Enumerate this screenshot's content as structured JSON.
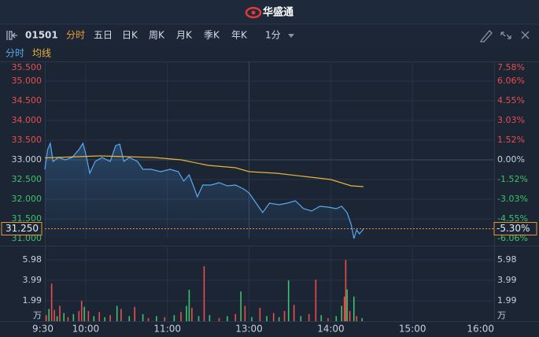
{
  "header": {
    "title": "华盛通"
  },
  "toolbar": {
    "code": "01501",
    "tabs": [
      "分时",
      "五日",
      "日K",
      "周K",
      "月K",
      "季K",
      "年K"
    ],
    "active_tab": 0,
    "interval": "1分"
  },
  "chart_data": [
    {
      "type": "line",
      "base": 33.0,
      "series": [
        {
          "name": "分时",
          "color": "#5aa9f0",
          "x": [
            0,
            2,
            4,
            6,
            10,
            15,
            20,
            25,
            28,
            30,
            33,
            37,
            42,
            48,
            52,
            55,
            58,
            62,
            68,
            72,
            78,
            85,
            92,
            98,
            102,
            106,
            110,
            112,
            116,
            122,
            128,
            134,
            140,
            146,
            150,
            156,
            160,
            165,
            172,
            178,
            184,
            190,
            196,
            202,
            208,
            214,
            218,
            222,
            225,
            227,
            229,
            231,
            234
          ],
          "values": [
            32.76,
            33.26,
            33.42,
            32.96,
            33.06,
            33.0,
            33.06,
            33.26,
            33.42,
            33.16,
            32.66,
            32.96,
            33.06,
            32.96,
            33.36,
            33.4,
            32.96,
            33.06,
            32.96,
            32.76,
            32.76,
            32.7,
            32.76,
            32.7,
            32.46,
            32.62,
            32.26,
            32.06,
            32.36,
            32.36,
            32.42,
            32.34,
            32.36,
            32.26,
            32.16,
            31.86,
            31.66,
            31.9,
            31.86,
            31.9,
            31.96,
            31.76,
            31.7,
            31.82,
            31.8,
            31.76,
            31.82,
            31.66,
            31.36,
            31.0,
            31.22,
            31.12,
            31.24
          ]
        },
        {
          "name": "均线",
          "color": "#e8b43c",
          "x": [
            0,
            40,
            80,
            100,
            120,
            140,
            150,
            170,
            190,
            210,
            225,
            234
          ],
          "values": [
            33.05,
            33.1,
            33.06,
            33.0,
            32.86,
            32.8,
            32.7,
            32.66,
            32.58,
            32.5,
            32.34,
            32.32
          ]
        }
      ],
      "ylim": [
        31.0,
        35.5
      ],
      "yticks": [
        {
          "value": 35.5,
          "label": "35.500"
        },
        {
          "value": 35.0,
          "label": "35.000"
        },
        {
          "value": 34.5,
          "label": "34.500"
        },
        {
          "value": 34.0,
          "label": "34.000"
        },
        {
          "value": 33.5,
          "label": "33.500"
        },
        {
          "value": 33.0,
          "label": "33.000"
        },
        {
          "value": 32.5,
          "label": "32.500"
        },
        {
          "value": 32.0,
          "label": "32.000"
        },
        {
          "value": 31.5,
          "label": "31.500"
        },
        {
          "value": 31.0,
          "label": "31.000"
        }
      ],
      "y2lim": [
        -6.06,
        7.58
      ],
      "y2ticks": [
        {
          "value": 7.58,
          "label": "7.58%"
        },
        {
          "value": 6.06,
          "label": "6.06%"
        },
        {
          "value": 4.55,
          "label": "4.55%"
        },
        {
          "value": 3.03,
          "label": "3.03%"
        },
        {
          "value": 1.52,
          "label": "1.52%"
        },
        {
          "value": 0,
          "label": "0.00%"
        },
        {
          "value": -1.52,
          "label": "-1.52%"
        },
        {
          "value": -3.03,
          "label": "-3.03%"
        },
        {
          "value": -4.55,
          "label": "-4.55%"
        },
        {
          "value": -6.06,
          "label": "-6.06%"
        }
      ],
      "last": {
        "value": 31.25,
        "label": "31.250"
      },
      "last_pct": {
        "value": -5.3,
        "label": "-5.30%"
      },
      "grid": true
    },
    {
      "type": "bar",
      "x": [
        1,
        3,
        5,
        7,
        9,
        11,
        14,
        17,
        21,
        25,
        27,
        29,
        32,
        36,
        40,
        44,
        48,
        53,
        56,
        62,
        66,
        72,
        76,
        82,
        88,
        95,
        100,
        104,
        106,
        108,
        113,
        117,
        121,
        128,
        134,
        140,
        144,
        147,
        152,
        158,
        163,
        168,
        172,
        176,
        179,
        183,
        188,
        194,
        199,
        203,
        208,
        214,
        218,
        220,
        221,
        222,
        224,
        227,
        229,
        233
      ],
      "values": [
        0.6,
        1.2,
        3.67,
        1.1,
        0.5,
        1.5,
        0.8,
        0.4,
        0.7,
        1.0,
        2.0,
        1.4,
        1.0,
        0.5,
        0.9,
        0.4,
        0.6,
        1.5,
        1.2,
        0.5,
        1.4,
        0.7,
        0.3,
        0.5,
        0.4,
        0.6,
        0.9,
        1.5,
        3.06,
        1.3,
        0.5,
        5.36,
        0.6,
        0.3,
        0.5,
        0.7,
        2.9,
        1.5,
        0.4,
        1.3,
        0.5,
        0.8,
        0.4,
        1.0,
        3.98,
        1.6,
        0.5,
        0.7,
        4.06,
        0.6,
        0.3,
        0.5,
        1.5,
        2.4,
        5.97,
        3.1,
        1.0,
        2.4,
        0.5,
        0.3
      ],
      "colors": [
        "#e84e4e",
        "#3cc36c",
        "#e84e4e",
        "#e84e4e",
        "#3cc36c",
        "#e84e4e",
        "#3cc36c",
        "#e84e4e",
        "#3cc36c",
        "#e84e4e",
        "#e84e4e",
        "#3cc36c",
        "#e84e4e",
        "#3cc36c",
        "#e84e4e",
        "#3cc36c",
        "#e84e4e",
        "#3cc36c",
        "#e84e4e",
        "#3cc36c",
        "#e84e4e",
        "#3cc36c",
        "#e84e4e",
        "#3cc36c",
        "#e84e4e",
        "#3cc36c",
        "#e84e4e",
        "#3cc36c",
        "#3cc36c",
        "#e84e4e",
        "#3cc36c",
        "#e84e4e",
        "#3cc36c",
        "#e84e4e",
        "#3cc36c",
        "#e84e4e",
        "#3cc36c",
        "#e84e4e",
        "#3cc36c",
        "#e84e4e",
        "#3cc36c",
        "#e84e4e",
        "#3cc36c",
        "#e84e4e",
        "#3cc36c",
        "#e84e4e",
        "#3cc36c",
        "#e84e4e",
        "#e84e4e",
        "#3cc36c",
        "#e84e4e",
        "#3cc36c",
        "#3cc36c",
        "#e84e4e",
        "#e84e4e",
        "#3cc36c",
        "#e84e4e",
        "#3cc36c",
        "#e84e4e",
        "#3cc36c"
      ],
      "xlim": [
        0,
        330
      ],
      "xticks": [
        {
          "value": 0,
          "label": "9:30"
        },
        {
          "value": 30,
          "label": "10:00"
        },
        {
          "value": 90,
          "label": "11:00"
        },
        {
          "value": 150,
          "label": "13:00"
        },
        {
          "value": 210,
          "label": "14:00"
        },
        {
          "value": 270,
          "label": "15:00"
        },
        {
          "value": 330,
          "label": "16:00"
        }
      ],
      "ylim": [
        0,
        6.9
      ],
      "yticks": [
        {
          "value": 5.98,
          "label": "5.98"
        },
        {
          "value": 3.99,
          "label": "3.99"
        },
        {
          "value": 1.99,
          "label": "1.99"
        },
        {
          "value": 0,
          "label": "万"
        }
      ],
      "grid": true
    }
  ]
}
